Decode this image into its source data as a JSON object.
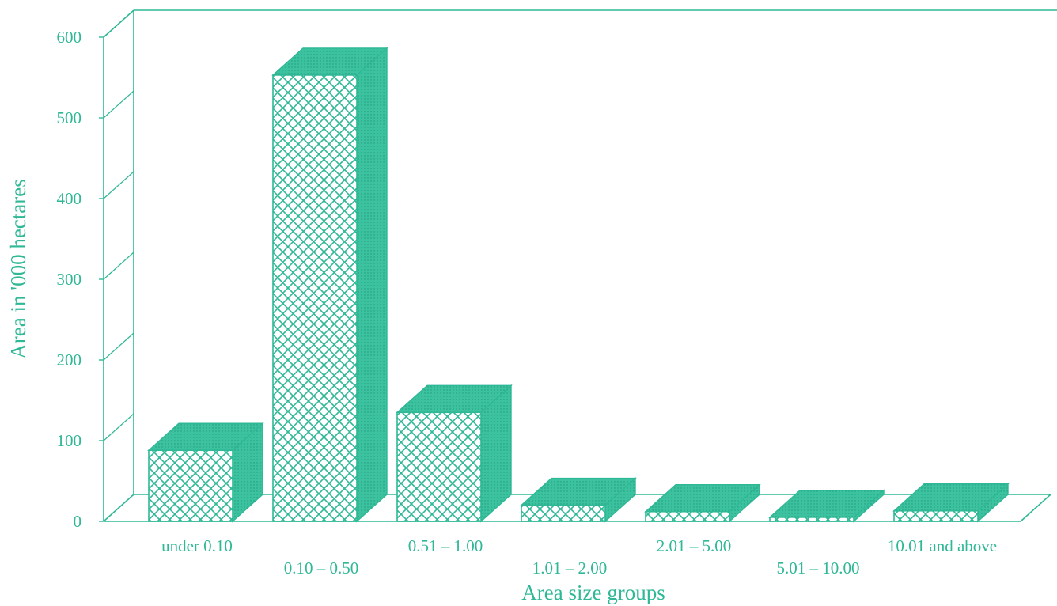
{
  "chart_data": {
    "type": "bar",
    "style": "3d-hatched",
    "color": "#2fb896",
    "title": "",
    "xlabel": "Area size groups",
    "ylabel": "Area in '000 hectares",
    "ylim": [
      0,
      600
    ],
    "yticks": [
      "0",
      "100",
      "200",
      "300",
      "400",
      "500",
      "600"
    ],
    "grid": false,
    "categories": [
      "under 0.10",
      "0.10 – 0.50",
      "0.51 – 1.00",
      "1.01 – 2.00",
      "2.01 – 5.00",
      "5.01 – 10.00",
      "10.01 and above"
    ],
    "values": [
      88,
      553,
      135,
      20,
      12,
      5,
      13
    ]
  }
}
